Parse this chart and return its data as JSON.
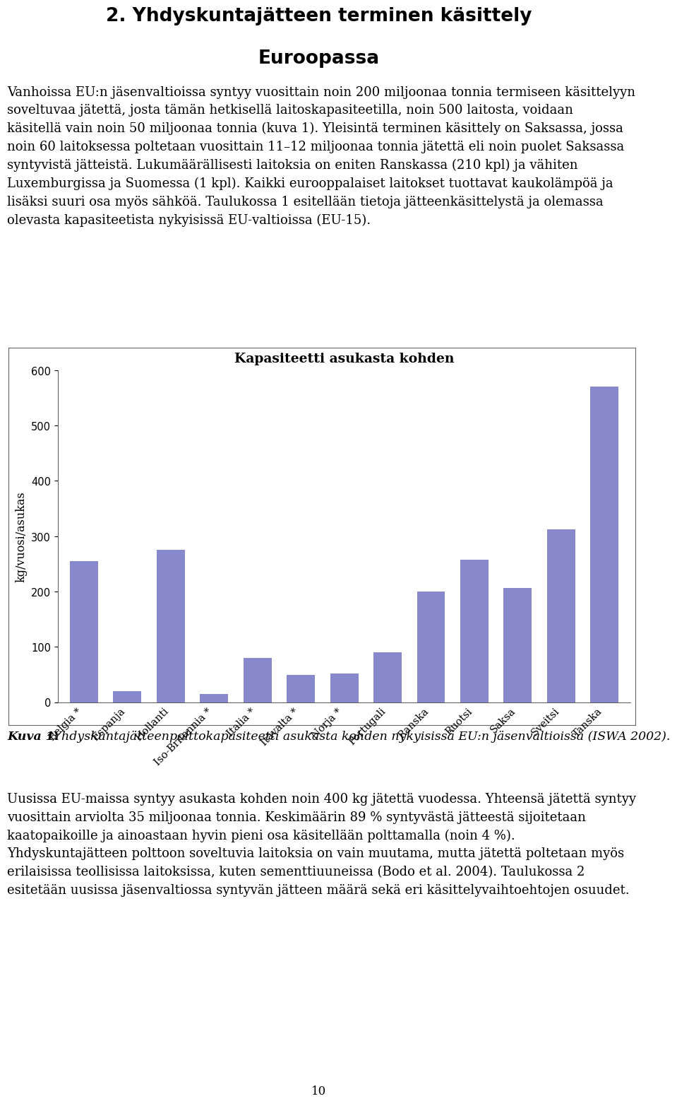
{
  "title_line1": "2. Yhdyskuntajätteen terminen käsittely",
  "title_line2": "Euroopassa",
  "para1_lines": [
    "Vanhoissa EU:n jäsenvaltioissa syntyy vuosittain noin 200 miljoonaa tonnia termiseen",
    "käsittelyyn soveltuvaa jätettä, josta tämän hetkisellä laitoskapasiteetilla, noin 500 laitos-",
    "ta, voidaan käsitellä vain noin 50 miljoonaa tonnia (kuva 1). Yleisintä terminen käsittely",
    "on Saksassa, jossa noin 60 laitoksessa poltetaan vuosittain 11–12 miljoonaa tonnia jätettä eli noin puolet Saksassa syntyvistä jätteistä.",
    "Lukumäärällisesti laitoksia on eniten Ranskassa (210 kpl) ja vähiten Luxemburgissa ja Suomessa (1 kpl). Kaikki eurooppalai-",
    "set laitokset tuottavat kaukolämpöä ja lisäksi suuri osa myös sähköä. Taulukossa 1 esi-",
    "tellään tietoja jätteenkäsittelystä ja olemassa olevasta kapasiteetista nykyisissä EU-",
    "valtioissa (EU-15)."
  ],
  "para1": "Vanhoissa EU:n jäsenvaltioissa syntyy vuosittain noin 200 miljoonaa tonnia termiseen käsittelyyn soveltuvaa jätettä, josta tämän hetkisellä laitoskapasiteetilla, noin 500 laitosta, voidaan käsitellä vain noin 50 miljoonaa tonnia (kuva 1). Yleisintä terminen käsittely on Saksassa, jossa noin 60 laitoksessa poltetaan vuosittain 11–12 miljoonaa tonnia jätettä eli noin puolet Saksassa syntyvistä jätteistä. Lukumäärällisesti laitoksia on eniten Ranskassa (210 kpl) ja vähiten Luxemburgissa ja Suomessa (1 kpl). Kaikki eurooppalaiset laitokset tuottavat kaukolämpöä ja lisäksi suuri osa myös sähköä. Taulukossa 1 esitellään tietoja jätteenkäsittelystä ja olemassa olevasta kapasiteetista nykyisissä EU-valtioissa (EU-15).",
  "chart_title": "Kapasiteetti asukasta kohden",
  "ylabel": "kg/vuosi/asukas",
  "categories": [
    "Belgia *",
    "Espanja",
    "Hollanti",
    "Iso-Britannia *",
    "Italia *",
    "Itävalta *",
    "Norja *",
    "Portugali",
    "Ranska",
    "Ruotsi",
    "Saksa",
    "Sveitsi",
    "Tanska"
  ],
  "values": [
    255,
    20,
    275,
    15,
    80,
    50,
    52,
    90,
    200,
    258,
    206,
    312,
    570
  ],
  "bar_color": "#8888cc",
  "ylim": [
    0,
    600
  ],
  "yticks": [
    0,
    100,
    200,
    300,
    400,
    500,
    600
  ],
  "caption_bold": "Kuva 1.",
  "caption_italic": " Yhdyskuntajätteenpolttokapasiteetti asukasta kohden nykyisissä EU:n jäsenval-\ntioissa (ISWA 2002).",
  "para2": "Uusissa EU-maissa syntyy asukasta kohden noin 400 kg jätettä vuodessa. Yhteensä jätettä syntyy vuosittain arviolta 35 miljoonaa tonnia. Keskimäärin 89 % syntyvästä jätteestä sijoitetaan kaatopaikoille ja ainoastaan hyvin pieni osa käsitellään polttamalla (noin 4 %). Yhdyskuntajätteen polttoon soveltuvia laitoksia on vain muutama, mutta jätettä poltetaan myös erilaisissa teollisissa laitoksissa, kuten sementtiuuneissa (Bodo et al. 2004). Taulukossa 2 esitetään uusissa jäsenvaltiossa syntyvän jätteen määrä sekä eri käsittelyvaihtoehtojen osuudet.",
  "page_number": "10",
  "background_color": "#ffffff",
  "body_fontsize": 13.0,
  "caption_fontsize": 12.5,
  "chart_title_fontsize": 13.5,
  "ylabel_fontsize": 11.5,
  "tick_fontsize": 10.5,
  "title_fontsize": 19
}
